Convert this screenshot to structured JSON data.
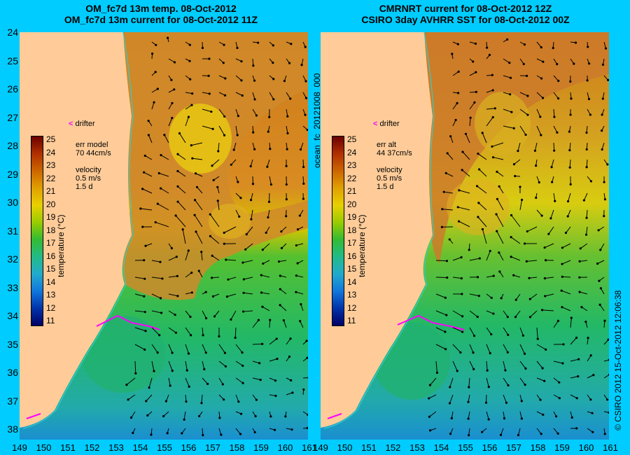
{
  "left_panel": {
    "title_line1": "OM_fc7d 13m temp. 08-Oct-2012",
    "title_line2": "OM_fc7d 13m current for 08-Oct-2012 11Z",
    "err_label": "err model",
    "err_values": "70 44cm/s",
    "velocity_label": "velocity",
    "velocity_scale": "0.5 m/s",
    "velocity_time": "1.5 d",
    "drifter_label": "drifter",
    "colorbar_label": "temperature (°C)"
  },
  "right_panel": {
    "title_line1": "CMRNRT current for 08-Oct-2012 12Z",
    "title_line2": "CSIRO 3day AVHRR SST for 08-Oct-2012 00Z",
    "err_label": "err alt",
    "err_values": "44 37cm/s",
    "velocity_label": "velocity",
    "velocity_scale": "0.5 m/s",
    "velocity_time": "1.5 d",
    "drifter_label": "drifter",
    "colorbar_label": "temperature (°C)"
  },
  "center_vertical_text": "ocean_fc_20121008_000",
  "right_vertical_text": "© CSIRO 2012    15-Oct-2012 12:06:38",
  "colorbar_ticks": [
    "25",
    "24",
    "23",
    "22",
    "21",
    "20",
    "19",
    "18",
    "17",
    "16",
    "15",
    "14",
    "13",
    "12",
    "11"
  ],
  "lat_labels": [
    "24",
    "25",
    "26",
    "27",
    "28",
    "29",
    "30",
    "31",
    "32",
    "33",
    "34",
    "35",
    "36",
    "37",
    "38"
  ],
  "lon_labels": [
    "149",
    "150",
    "151",
    "152",
    "153",
    "154",
    "155",
    "156",
    "157",
    "158",
    "159",
    "160",
    "161"
  ],
  "colors": {
    "background": "#00ccff",
    "land": "#ffcc99",
    "warm": "#cc6600",
    "mid": "#e8d000",
    "cool": "#33bb33",
    "cold": "#0099cc",
    "drifter": "#ff00ff",
    "isobath": "#33cccc"
  }
}
